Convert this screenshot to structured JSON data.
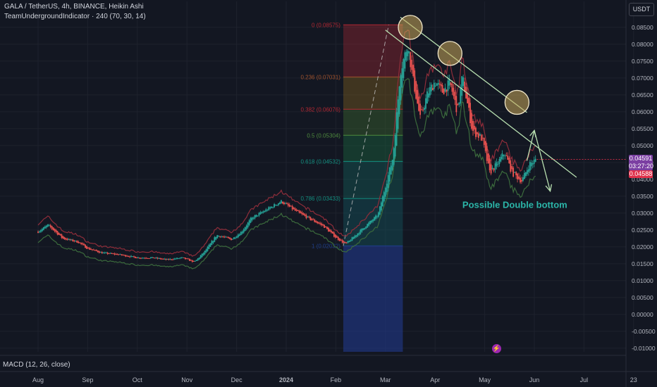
{
  "header": {
    "line1": "GALA / TetherUS, 4h, BINANCE, Heikin Ashi",
    "line2": "TeamUndergroundIndicator · 240 (70, 30, 14)"
  },
  "indicator_label": "MACD (12, 26, close)",
  "currency_button": "USDT",
  "price_tags": {
    "purple_price": "0.04591",
    "purple_time": "03:27:20",
    "red_price": "0.04588"
  },
  "colors": {
    "background": "#131722",
    "bull": "#26a69a",
    "bear": "#ef5350",
    "ind_red": "#8e2d3a",
    "ind_green": "#3b6a3c",
    "trendline": "#b8e0b0",
    "annotation": "#2bb5a8",
    "circle_fill": "#c9a75a",
    "fib_guide": "#c2c2c2"
  },
  "chart_data": {
    "type": "candlestick",
    "symbol": "GALA / TetherUS",
    "x_tick_labels": [
      "Aug",
      "Sep",
      "Oct",
      "Nov",
      "Dec",
      "2024",
      "Feb",
      "Mar",
      "Apr",
      "May",
      "Jun",
      "Jul",
      "23"
    ],
    "y_tick_labels": [
      "0.08500",
      "0.08000",
      "0.07500",
      "0.07000",
      "0.06500",
      "0.06000",
      "0.05500",
      "0.05000",
      "0.04500",
      "0.04000",
      "0.03500",
      "0.03000",
      "0.02500",
      "0.02000",
      "0.01500",
      "0.01000",
      "0.00500",
      "0.00000",
      "-0.00500",
      "-0.01000"
    ],
    "ylim": [
      -0.0105,
      0.0885
    ],
    "price_path": [
      {
        "t": 0.0,
        "p": 0.0245
      },
      {
        "t": 0.2,
        "p": 0.0265
      },
      {
        "t": 0.5,
        "p": 0.0225
      },
      {
        "t": 0.8,
        "p": 0.0215
      },
      {
        "t": 1.0,
        "p": 0.0195
      },
      {
        "t": 1.3,
        "p": 0.0182
      },
      {
        "t": 1.6,
        "p": 0.0178
      },
      {
        "t": 2.0,
        "p": 0.0168
      },
      {
        "t": 2.3,
        "p": 0.0168
      },
      {
        "t": 2.6,
        "p": 0.0162
      },
      {
        "t": 2.9,
        "p": 0.0168
      },
      {
        "t": 3.15,
        "p": 0.0155
      },
      {
        "t": 3.35,
        "p": 0.0185
      },
      {
        "t": 3.6,
        "p": 0.0235
      },
      {
        "t": 3.9,
        "p": 0.0222
      },
      {
        "t": 4.1,
        "p": 0.0245
      },
      {
        "t": 4.3,
        "p": 0.0285
      },
      {
        "t": 4.6,
        "p": 0.031
      },
      {
        "t": 4.9,
        "p": 0.0335
      },
      {
        "t": 5.2,
        "p": 0.0305
      },
      {
        "t": 5.45,
        "p": 0.0285
      },
      {
        "t": 5.75,
        "p": 0.0262
      },
      {
        "t": 6.0,
        "p": 0.0228
      },
      {
        "t": 6.2,
        "p": 0.0208
      },
      {
        "t": 6.4,
        "p": 0.0235
      },
      {
        "t": 6.6,
        "p": 0.0262
      },
      {
        "t": 6.85,
        "p": 0.0295
      },
      {
        "t": 7.0,
        "p": 0.038
      },
      {
        "t": 7.15,
        "p": 0.0465
      },
      {
        "t": 7.3,
        "p": 0.072
      },
      {
        "t": 7.45,
        "p": 0.08
      },
      {
        "t": 7.55,
        "p": 0.07
      },
      {
        "t": 7.7,
        "p": 0.058
      },
      {
        "t": 7.85,
        "p": 0.0655
      },
      {
        "t": 8.0,
        "p": 0.069
      },
      {
        "t": 8.15,
        "p": 0.066
      },
      {
        "t": 8.3,
        "p": 0.0685
      },
      {
        "t": 8.45,
        "p": 0.06
      },
      {
        "t": 8.55,
        "p": 0.0705
      },
      {
        "t": 8.75,
        "p": 0.0545
      },
      {
        "t": 8.95,
        "p": 0.052
      },
      {
        "t": 9.1,
        "p": 0.042
      },
      {
        "t": 9.25,
        "p": 0.0445
      },
      {
        "t": 9.4,
        "p": 0.048
      },
      {
        "t": 9.55,
        "p": 0.042
      },
      {
        "t": 9.75,
        "p": 0.0395
      },
      {
        "t": 9.9,
        "p": 0.0445
      },
      {
        "t": 10.05,
        "p": 0.0459
      }
    ],
    "fibonacci": {
      "start_t": 6.15,
      "end_t": 7.35,
      "levels": [
        {
          "label": "0 (0.08575)",
          "ratio": "0",
          "price": 0.08575
        },
        {
          "label": "0.236 (0.07031)",
          "ratio": "0.236",
          "price": 0.07031
        },
        {
          "label": "0.382 (0.06076)",
          "ratio": "0.382",
          "price": 0.06076
        },
        {
          "label": "0.5 (0.05304)",
          "ratio": "0.5",
          "price": 0.05304
        },
        {
          "label": "0.618 (0.04532)",
          "ratio": "0.618",
          "price": 0.04532
        },
        {
          "label": "0.786 (0.03433)",
          "ratio": "0.786",
          "price": 0.03433
        },
        {
          "label": "1 (0.02032)",
          "ratio": "1",
          "price": 0.02032
        }
      ]
    },
    "trendlines": [
      {
        "t1": 7.3,
        "p1": 0.088,
        "t2": 9.85,
        "p2": 0.0598
      },
      {
        "t1": 7.0,
        "p1": 0.0842,
        "t2": 10.85,
        "p2": 0.0406
      }
    ],
    "circles": [
      {
        "t": 7.5,
        "p": 0.085
      },
      {
        "t": 8.3,
        "p": 0.0773
      },
      {
        "t": 9.65,
        "p": 0.0628
      }
    ],
    "arrows": [
      {
        "from_t": 9.85,
        "from_p": 0.0455,
        "to_t": 10.0,
        "to_p": 0.0545
      },
      {
        "from_t": 10.0,
        "from_p": 0.0545,
        "to_t": 10.32,
        "to_p": 0.0365
      }
    ],
    "annotation": {
      "text": "Possible Double bottom",
      "t": 8.55,
      "p": 0.0315
    },
    "last_price": 0.0459
  }
}
